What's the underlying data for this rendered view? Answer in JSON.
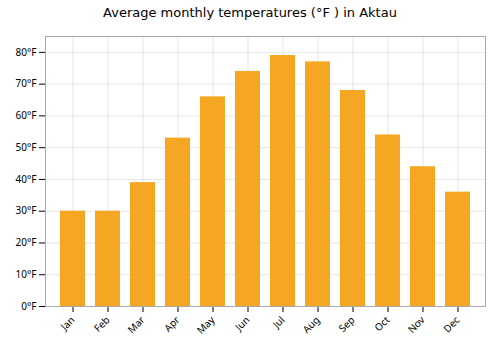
{
  "chart_data": {
    "type": "bar",
    "title": "Average monthly temperatures (°F ) in Aktau",
    "categories": [
      "Jan",
      "Feb",
      "Mar",
      "Apr",
      "May",
      "Jun",
      "Jul",
      "Aug",
      "Sep",
      "Oct",
      "Nov",
      "Dec"
    ],
    "values": [
      30,
      30,
      39,
      53,
      66,
      74,
      79,
      77,
      68,
      54,
      44,
      36
    ],
    "color": "#F5A623",
    "ylim": [
      0,
      85
    ],
    "yticks": [
      {
        "value": 0,
        "label": "0°F"
      },
      {
        "value": 10,
        "label": "10°F"
      },
      {
        "value": 20,
        "label": "20°F"
      },
      {
        "value": 30,
        "label": "30°F"
      },
      {
        "value": 40,
        "label": "40°F"
      },
      {
        "value": 50,
        "label": "50°F"
      },
      {
        "value": 60,
        "label": "60°F"
      },
      {
        "value": 70,
        "label": "70°F"
      },
      {
        "value": 80,
        "label": "80°F"
      }
    ],
    "grid": true
  }
}
